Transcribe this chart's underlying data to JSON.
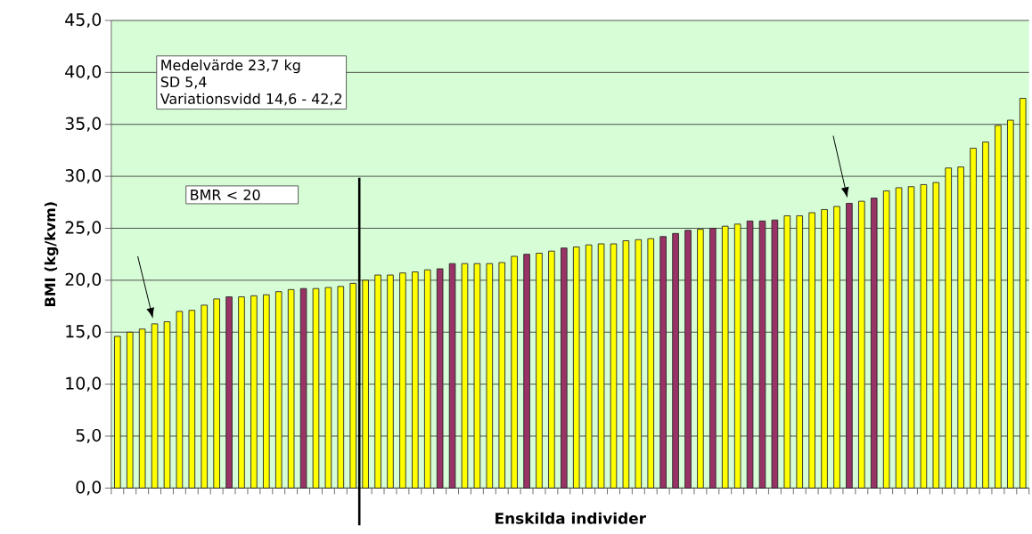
{
  "chart_data": {
    "type": "bar",
    "xlabel": "Enskilda individer",
    "ylabel": "BMI (kg/kvm)",
    "categories": [
      null,
      null,
      null,
      null,
      null,
      null,
      null,
      null,
      null,
      null,
      null,
      null,
      null,
      null,
      null,
      null,
      null,
      null,
      null,
      null,
      null,
      null,
      null,
      null,
      null,
      null,
      null,
      null,
      null,
      null,
      null,
      null,
      null,
      null,
      null,
      null,
      null,
      null,
      null,
      null,
      null,
      null,
      null,
      null,
      null,
      null,
      null,
      null,
      null,
      null,
      null,
      null,
      null,
      null,
      null,
      null,
      null,
      null,
      null,
      null,
      null,
      null,
      null,
      null,
      null,
      null,
      null,
      null,
      null,
      null,
      null,
      null,
      null,
      null
    ],
    "values": [
      14.6,
      15.0,
      15.3,
      15.8,
      16.0,
      17.0,
      17.1,
      17.6,
      18.2,
      18.4,
      18.4,
      18.5,
      18.6,
      18.9,
      19.1,
      19.2,
      19.2,
      19.3,
      19.4,
      19.7,
      20.0,
      20.5,
      20.5,
      20.7,
      20.8,
      21.0,
      21.1,
      21.6,
      21.6,
      21.6,
      21.6,
      21.7,
      22.3,
      22.5,
      22.6,
      22.8,
      23.1,
      23.2,
      23.4,
      23.5,
      23.5,
      23.8,
      23.9,
      24.0,
      24.2,
      24.5,
      24.8,
      24.9,
      25.0,
      25.2,
      25.4,
      25.7,
      25.7,
      25.8,
      26.2,
      26.2,
      26.5,
      26.8,
      27.1,
      27.4,
      27.6,
      27.9,
      28.6,
      28.9,
      29.0,
      29.2,
      29.4,
      30.8,
      30.9,
      32.7,
      33.3,
      34.9,
      35.4,
      37.5
    ],
    "colors": [
      "#ffff00",
      "#ffff00",
      "#ffff00",
      "#ffff00",
      "#ffff00",
      "#ffff00",
      "#ffff00",
      "#ffff00",
      "#ffff00",
      "#993366",
      "#ffff00",
      "#ffff00",
      "#ffff00",
      "#ffff00",
      "#ffff00",
      "#993366",
      "#ffff00",
      "#ffff00",
      "#ffff00",
      "#ffff00",
      "#ffff00",
      "#ffff00",
      "#ffff00",
      "#ffff00",
      "#ffff00",
      "#ffff00",
      "#993366",
      "#993366",
      "#ffff00",
      "#ffff00",
      "#ffff00",
      "#ffff00",
      "#ffff00",
      "#993366",
      "#ffff00",
      "#ffff00",
      "#993366",
      "#ffff00",
      "#ffff00",
      "#ffff00",
      "#ffff00",
      "#ffff00",
      "#ffff00",
      "#ffff00",
      "#993366",
      "#993366",
      "#993366",
      "#ffff00",
      "#993366",
      "#ffff00",
      "#ffff00",
      "#993366",
      "#993366",
      "#993366",
      "#ffff00",
      "#ffff00",
      "#ffff00",
      "#ffff00",
      "#ffff00",
      "#993366",
      "#ffff00",
      "#993366",
      "#ffff00",
      "#ffff00",
      "#ffff00",
      "#ffff00",
      "#ffff00",
      "#ffff00",
      "#ffff00",
      "#ffff00",
      "#ffff00",
      "#ffff00",
      "#ffff00",
      "#ffff00"
    ],
    "ylim": [
      0,
      45
    ],
    "yticks": [
      {
        "value": 0,
        "label": "0,0"
      },
      {
        "value": 5,
        "label": "5,0"
      },
      {
        "value": 10,
        "label": "10,0"
      },
      {
        "value": 15,
        "label": "15,0"
      },
      {
        "value": 20,
        "label": "20,0"
      },
      {
        "value": 25,
        "label": "25,0"
      },
      {
        "value": 30,
        "label": "30,0"
      },
      {
        "value": 35,
        "label": "35,0"
      },
      {
        "value": 40,
        "label": "40,0"
      },
      {
        "value": 45,
        "label": "45,0"
      }
    ],
    "grid": "y",
    "annotations": [
      "Medelvärde 23,7 kg",
      "SD 5,4",
      "Variationsvidd 14,6 - 42,2",
      "BMR < 20"
    ]
  }
}
